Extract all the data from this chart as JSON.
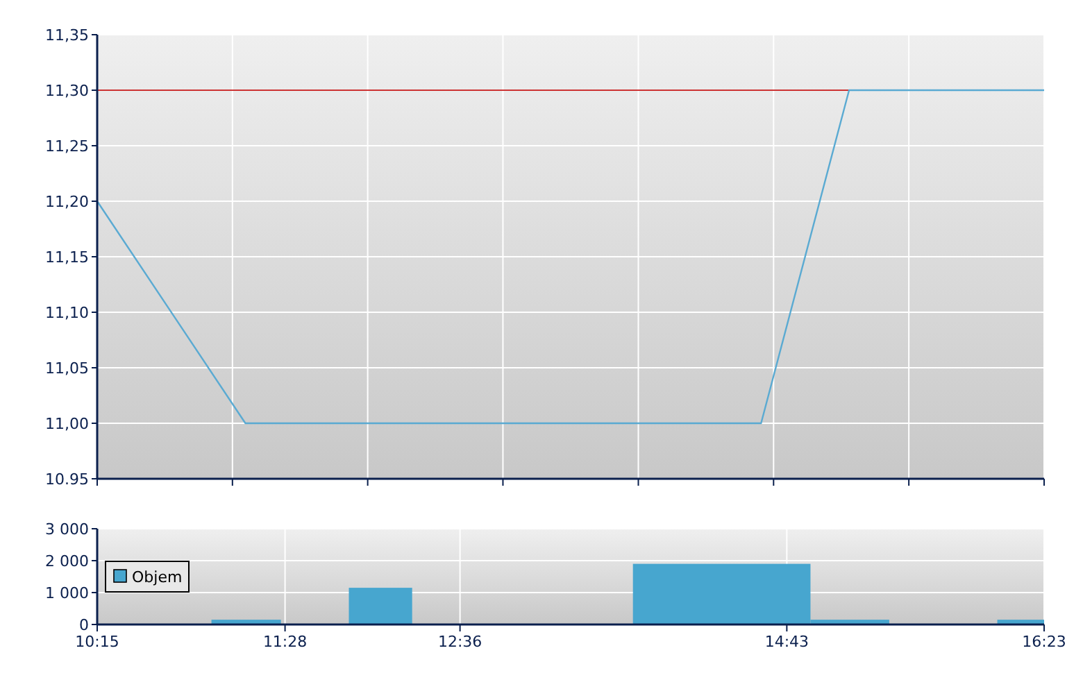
{
  "chart_data": [
    {
      "type": "line",
      "xlim": [
        10.25,
        16.3833
      ],
      "xticks": [
        {
          "value": 10.25,
          "label": null
        },
        {
          "value": 11.126,
          "label": null
        },
        {
          "value": 12.002,
          "label": null
        },
        {
          "value": 12.878,
          "label": null
        },
        {
          "value": 13.755,
          "label": null
        },
        {
          "value": 14.631,
          "label": null
        },
        {
          "value": 15.507,
          "label": null
        },
        {
          "value": 16.3833,
          "label": null
        }
      ],
      "ylim": [
        10.95,
        11.35
      ],
      "yticks": [
        {
          "value": 10.95,
          "label": "10.95"
        },
        {
          "value": 11.0,
          "label": "11,00"
        },
        {
          "value": 11.05,
          "label": "11,05"
        },
        {
          "value": 11.1,
          "label": "11,10"
        },
        {
          "value": 11.15,
          "label": "11,15"
        },
        {
          "value": 11.2,
          "label": "11,20"
        },
        {
          "value": 11.25,
          "label": "11,25"
        },
        {
          "value": 11.3,
          "label": "11,30"
        },
        {
          "value": 11.35,
          "label": "11,35"
        }
      ],
      "tick_labels": "y",
      "grid": true,
      "series": [
        {
          "color": "#5aaad2",
          "x": [
            10.25,
            11.21,
            14.55,
            15.12,
            16.3833
          ],
          "values": [
            11.2,
            11.0,
            11.0,
            11.3,
            11.3
          ]
        }
      ],
      "ref_lines": [
        {
          "axis": "y",
          "value": 11.3,
          "color": "#cc3333"
        }
      ]
    },
    {
      "type": "histogram",
      "xlim": [
        10.25,
        16.3833
      ],
      "xticks": [
        {
          "value": 10.25,
          "label": "10:15"
        },
        {
          "value": 11.4667,
          "label": "11:28"
        },
        {
          "value": 12.6,
          "label": "12:36"
        },
        {
          "value": 14.7167,
          "label": "14:43"
        },
        {
          "value": 16.3833,
          "label": "16:23"
        }
      ],
      "ylim": [
        0,
        3000
      ],
      "yticks": [
        0,
        {
          "value": 1000,
          "label": "1 000"
        },
        {
          "value": 2000,
          "label": "2 000"
        },
        {
          "value": 3000,
          "label": "3 000"
        }
      ],
      "grid": true,
      "legend": "left",
      "bins": [
        10.99,
        11.44,
        11.88,
        12.29,
        13.72,
        14.87,
        15.38,
        16.08,
        16.3833
      ],
      "series": [
        {
          "name": "Objem",
          "color": "#47a6cf",
          "values": [
            150,
            0,
            1150,
            0,
            1900,
            150,
            0,
            150
          ]
        }
      ]
    }
  ]
}
